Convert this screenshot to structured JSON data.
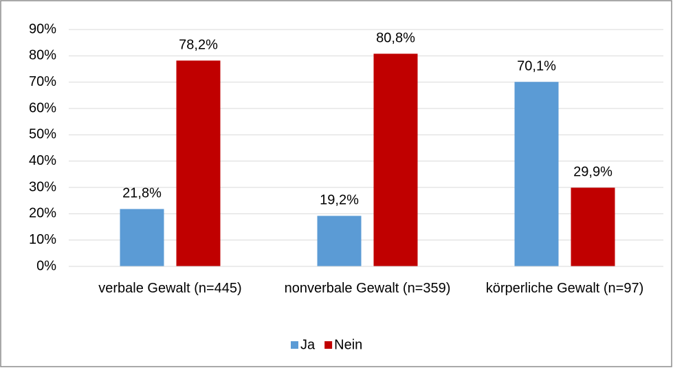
{
  "chart_data": {
    "type": "bar",
    "categories": [
      "verbale Gewalt (n=445)",
      "nonverbale Gewalt (n=359)",
      "körperliche Gewalt (n=97)"
    ],
    "series": [
      {
        "name": "Ja",
        "color": "#5b9bd5",
        "values": [
          21.8,
          19.2,
          70.1
        ],
        "value_labels": [
          "21,8%",
          "19,2%",
          "70,1%"
        ]
      },
      {
        "name": "Nein",
        "color": "#c00000",
        "values": [
          78.2,
          80.8,
          29.9
        ],
        "value_labels": [
          "78,2%",
          "80,8%",
          "29,9%"
        ]
      }
    ],
    "ylim": [
      0,
      90
    ],
    "yticks": [
      {
        "value": 0,
        "label": "0%"
      },
      {
        "value": 10,
        "label": "10%"
      },
      {
        "value": 20,
        "label": "20%"
      },
      {
        "value": 30,
        "label": "30%"
      },
      {
        "value": 40,
        "label": "40%"
      },
      {
        "value": 50,
        "label": "50%"
      },
      {
        "value": 60,
        "label": "60%"
      },
      {
        "value": 70,
        "label": "70%"
      },
      {
        "value": 80,
        "label": "80%"
      },
      {
        "value": 90,
        "label": "90%"
      }
    ],
    "grid": true,
    "legend": "bottom"
  }
}
